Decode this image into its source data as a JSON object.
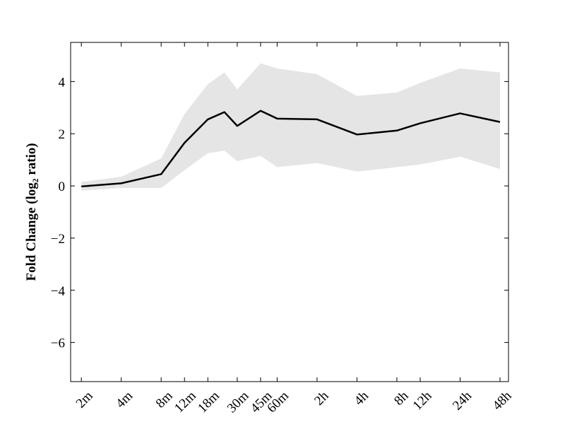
{
  "chart_data": {
    "type": "line",
    "ylabel": "Fold Change (log₂ ratio)",
    "x": [
      2,
      4,
      8,
      12,
      18,
      24,
      30,
      45,
      60,
      120,
      240,
      480,
      720,
      1440,
      2880
    ],
    "values": [
      -0.02,
      0.1,
      0.45,
      1.65,
      2.55,
      2.83,
      2.3,
      2.88,
      2.58,
      2.55,
      1.97,
      2.12,
      2.4,
      2.78,
      2.45
    ],
    "upper": [
      0.15,
      0.35,
      1.05,
      2.75,
      3.9,
      4.35,
      3.7,
      4.7,
      4.5,
      4.28,
      3.45,
      3.58,
      3.95,
      4.5,
      4.35
    ],
    "lower": [
      -0.18,
      -0.08,
      -0.08,
      0.6,
      1.25,
      1.35,
      0.95,
      1.15,
      0.72,
      0.88,
      0.55,
      0.72,
      0.82,
      1.12,
      0.65
    ],
    "color": "#000000",
    "band_color": "#e5e5e5",
    "xscale": "log2",
    "xlim": [
      1.66,
      3338
    ],
    "xticks": [
      {
        "value": 2,
        "label": "2m"
      },
      {
        "value": 4,
        "label": "4m"
      },
      {
        "value": 8,
        "label": "8m"
      },
      {
        "value": 12,
        "label": "12m"
      },
      {
        "value": 18,
        "label": "18m"
      },
      {
        "value": 30,
        "label": "30m"
      },
      {
        "value": 45,
        "label": "45m"
      },
      {
        "value": 60,
        "label": "60m"
      },
      {
        "value": 120,
        "label": "2h"
      },
      {
        "value": 240,
        "label": "4h"
      },
      {
        "value": 480,
        "label": "8h"
      },
      {
        "value": 720,
        "label": "12h"
      },
      {
        "value": 1440,
        "label": "24h"
      },
      {
        "value": 2880,
        "label": "48h"
      }
    ],
    "ylim": [
      -7.5,
      5.5
    ],
    "yticks": [
      {
        "value": -6,
        "label": "−6"
      },
      {
        "value": -4,
        "label": "−4"
      },
      {
        "value": -2,
        "label": "−2"
      },
      0,
      2,
      4
    ]
  }
}
